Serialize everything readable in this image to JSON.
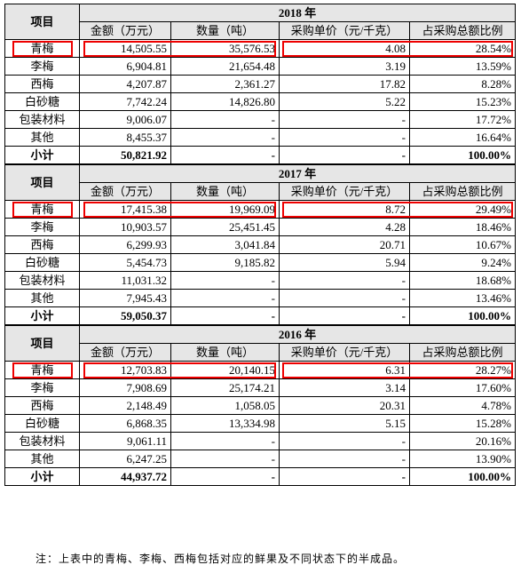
{
  "sections": [
    {
      "year": "2018 年",
      "item_header": "项目",
      "columns": [
        "金额（万元）",
        "数量（吨）",
        "采购单价（元/千克）",
        "占采购总额比例"
      ],
      "rows": [
        [
          "青梅",
          "14,505.55",
          "35,576.53",
          "4.08",
          "28.54%"
        ],
        [
          "李梅",
          "6,904.81",
          "21,654.48",
          "3.19",
          "13.59%"
        ],
        [
          "西梅",
          "4,207.87",
          "2,361.27",
          "17.82",
          "8.28%"
        ],
        [
          "白砂糖",
          "7,742.24",
          "14,826.80",
          "5.22",
          "15.23%"
        ],
        [
          "包装材料",
          "9,006.07",
          "-",
          "-",
          "17.72%"
        ],
        [
          "其他",
          "8,455.37",
          "-",
          "-",
          "16.64%"
        ]
      ],
      "total": [
        "小计",
        "50,821.92",
        "-",
        "-",
        "100.00%"
      ]
    },
    {
      "year": "2017 年",
      "item_header": "项目",
      "columns": [
        "金额（万元）",
        "数量（吨）",
        "采购单价（元/千克）",
        "占采购总额比例"
      ],
      "rows": [
        [
          "青梅",
          "17,415.38",
          "19,969.09",
          "8.72",
          "29.49%"
        ],
        [
          "李梅",
          "10,903.57",
          "25,451.45",
          "4.28",
          "18.46%"
        ],
        [
          "西梅",
          "6,299.93",
          "3,041.84",
          "20.71",
          "10.67%"
        ],
        [
          "白砂糖",
          "5,454.73",
          "9,185.82",
          "5.94",
          "9.24%"
        ],
        [
          "包装材料",
          "11,031.32",
          "-",
          "-",
          "18.68%"
        ],
        [
          "其他",
          "7,945.43",
          "-",
          "-",
          "13.46%"
        ]
      ],
      "total": [
        "小计",
        "59,050.37",
        "-",
        "-",
        "100.00%"
      ]
    },
    {
      "year": "2016 年",
      "item_header": "项目",
      "columns": [
        "金额（万元）",
        "数量（吨）",
        "采购单价（元/千克）",
        "占采购总额比例"
      ],
      "rows": [
        [
          "青梅",
          "12,703.83",
          "20,140.15",
          "6.31",
          "28.27%"
        ],
        [
          "李梅",
          "7,908.69",
          "25,174.21",
          "3.14",
          "17.60%"
        ],
        [
          "西梅",
          "2,148.49",
          "1,058.05",
          "20.31",
          "4.78%"
        ],
        [
          "白砂糖",
          "6,868.35",
          "13,334.98",
          "5.15",
          "15.28%"
        ],
        [
          "包装材料",
          "9,061.11",
          "-",
          "-",
          "20.16%"
        ],
        [
          "其他",
          "6,247.25",
          "-",
          "-",
          "13.90%"
        ]
      ],
      "total": [
        "小计",
        "44,937.72",
        "-",
        "-",
        "100.00%"
      ]
    }
  ],
  "note": "注：上表中的青梅、李梅、西梅包括对应的鲜果及不同状态下的半成品。"
}
